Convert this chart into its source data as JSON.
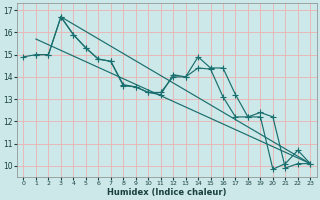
{
  "xlabel": "Humidex (Indice chaleur)",
  "xlim": [
    -0.5,
    23.5
  ],
  "ylim": [
    9.5,
    17.3
  ],
  "xticks": [
    0,
    1,
    2,
    3,
    4,
    5,
    6,
    7,
    8,
    9,
    10,
    11,
    12,
    13,
    14,
    15,
    16,
    17,
    18,
    19,
    20,
    21,
    22,
    23
  ],
  "yticks": [
    10,
    11,
    12,
    13,
    14,
    15,
    16,
    17
  ],
  "bg_color": "#cce8e8",
  "grid_color": "#e8b8b8",
  "line_color": "#1a6e6e",
  "line1_x": [
    0,
    1,
    2,
    3,
    4,
    5,
    6,
    7,
    8,
    9,
    10,
    11,
    12,
    13,
    14,
    15,
    16,
    17,
    18,
    19,
    20,
    21,
    22,
    23
  ],
  "line1_y": [
    14.9,
    15.0,
    15.0,
    16.7,
    15.9,
    15.3,
    14.8,
    14.7,
    13.65,
    13.55,
    13.3,
    13.2,
    14.1,
    14.0,
    14.9,
    14.4,
    14.4,
    13.2,
    12.2,
    12.4,
    12.2,
    9.9,
    10.1,
    10.1
  ],
  "line2_x": [
    1,
    2,
    3,
    4,
    5,
    6,
    7,
    8,
    9,
    10,
    11,
    12,
    13,
    14,
    15,
    16,
    17,
    18,
    19,
    20,
    21,
    22,
    23
  ],
  "line2_y": [
    15.0,
    15.0,
    16.7,
    15.9,
    15.3,
    14.8,
    14.7,
    13.6,
    13.55,
    13.3,
    13.3,
    14.0,
    14.0,
    14.4,
    14.35,
    13.1,
    12.2,
    12.2,
    12.2,
    9.85,
    10.1,
    10.7,
    10.1
  ],
  "trend1_x": [
    1,
    23
  ],
  "trend1_y": [
    15.7,
    10.1
  ],
  "trend2_x": [
    3,
    23
  ],
  "trend2_y": [
    16.7,
    10.1
  ]
}
